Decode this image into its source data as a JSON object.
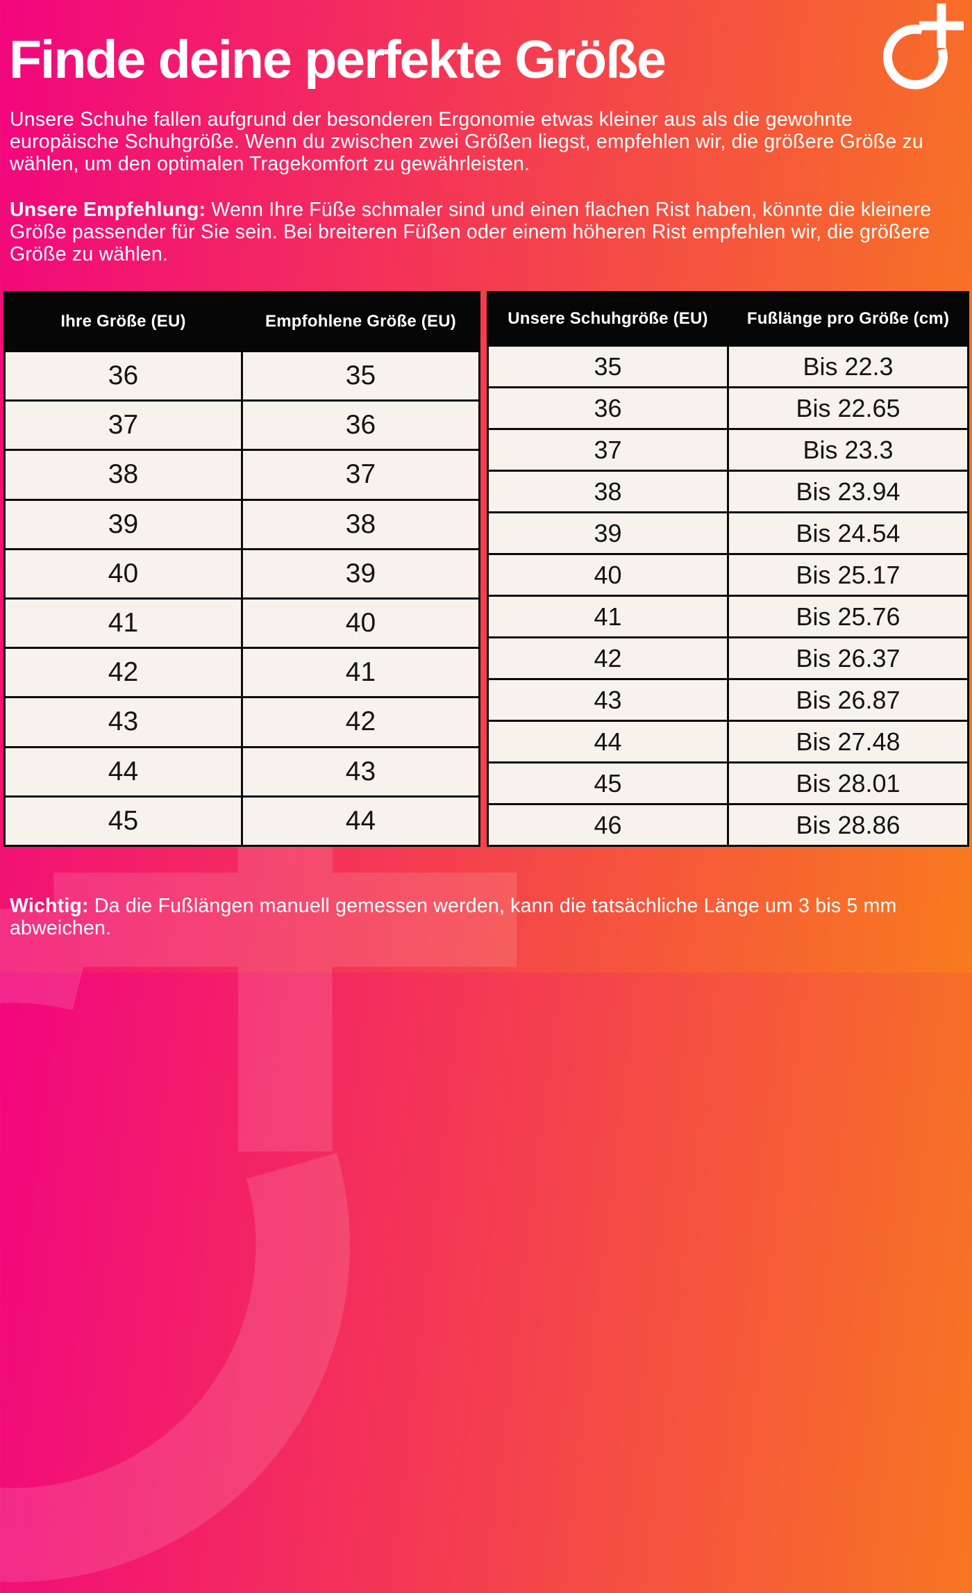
{
  "page": {
    "title": "Finde deine perfekte Größe",
    "intro": "Unsere Schuhe fallen aufgrund der besonderen Ergonomie etwas kleiner aus als die gewohnte europäische Schuhgröße. Wenn du zwischen zwei Größen liegst, empfehlen wir, die größere Größe zu wählen, um den optimalen Tragekomfort zu gewährleisten.",
    "recommendation_label": "Unsere Empfehlung:",
    "recommendation_text": " Wenn Ihre Füße schmaler sind und einen flachen Rist haben, könnte die kleinere Größe passender für Sie sein. Bei breiteren Füßen oder einem höheren Rist empfehlen wir, die größere Größe zu wählen.",
    "note_label": "Wichtig:",
    "note_text": " Da die Fußlängen manuell gemessen werden, kann die tatsächliche Länge um 3 bis 5 mm abweichen."
  },
  "brand": {
    "logo_name": "o-plus-logo"
  },
  "colors": {
    "gradient_left": "#f2067e",
    "gradient_mid": "#f4414d",
    "gradient_right": "#f87b1e",
    "table_header_bg": "#060606",
    "table_cell_bg": "#f8f2ed",
    "table_border": "#0a0a0a",
    "text_on_gradient": "#ffffff",
    "cell_text": "#141414"
  },
  "size_table": {
    "headers": [
      "Ihre Größe (EU)",
      "Empfohlene Größe (EU)"
    ],
    "rows": [
      [
        "36",
        "35"
      ],
      [
        "37",
        "36"
      ],
      [
        "38",
        "37"
      ],
      [
        "39",
        "38"
      ],
      [
        "40",
        "39"
      ],
      [
        "41",
        "40"
      ],
      [
        "42",
        "41"
      ],
      [
        "43",
        "42"
      ],
      [
        "44",
        "43"
      ],
      [
        "45",
        "44"
      ]
    ]
  },
  "foot_length_table": {
    "headers": [
      "Unsere Schuhgröße (EU)",
      "Fußlänge pro Größe (cm)"
    ],
    "rows": [
      [
        "35",
        "Bis 22.3"
      ],
      [
        "36",
        "Bis 22.65"
      ],
      [
        "37",
        "Bis 23.3"
      ],
      [
        "38",
        "Bis 23.94"
      ],
      [
        "39",
        "Bis 24.54"
      ],
      [
        "40",
        "Bis 25.17"
      ],
      [
        "41",
        "Bis 25.76"
      ],
      [
        "42",
        "Bis 26.37"
      ],
      [
        "43",
        "Bis 26.87"
      ],
      [
        "44",
        "Bis 27.48"
      ],
      [
        "45",
        "Bis 28.01"
      ],
      [
        "46",
        "Bis 28.86"
      ]
    ]
  }
}
